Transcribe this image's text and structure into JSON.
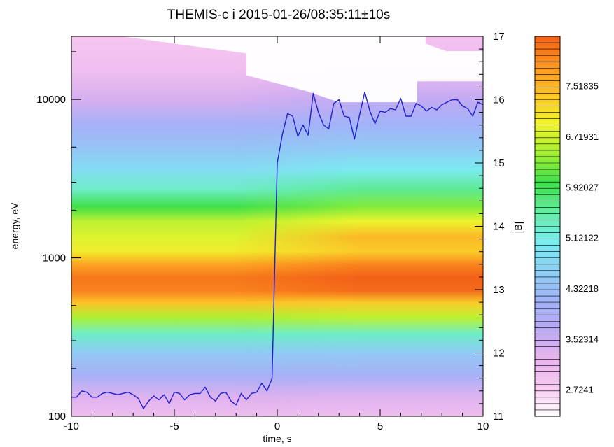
{
  "chart_data": {
    "type": "heatmap",
    "title": "THEMIS-c i 2015-01-26/08:35:11±10s",
    "xlabel": "time, s",
    "ylabel": "energy, eV",
    "y2label": "|B|",
    "xlim": [
      -10,
      10
    ],
    "ylim": [
      100,
      25000
    ],
    "y_scale": "log",
    "y2lim": [
      11,
      17
    ],
    "x_ticks": [
      "-10",
      "-5",
      "0",
      "5",
      "10"
    ],
    "y_ticks": [
      "100",
      "1000",
      "10000"
    ],
    "y2_ticks": [
      "11",
      "12",
      "13",
      "14",
      "15",
      "16",
      "17"
    ],
    "colorbar_labels": [
      "7.51835",
      "6.71931",
      "5.92027",
      "5.12122",
      "4.32218",
      "3.52314",
      "2.7241"
    ],
    "colorbar_range": [
      2.3,
      8.3
    ],
    "colormap": [
      "#ffffff",
      "#f7c8f1",
      "#e8b4ee",
      "#b8a8f4",
      "#a0b4f8",
      "#8cd0f4",
      "#78eef0",
      "#64eca0",
      "#3ee04a",
      "#a4f034",
      "#f0f42c",
      "#fcc428",
      "#fc9420",
      "#f26018"
    ],
    "spectrogram_bands": [
      {
        "energy_ev": 100,
        "left_level": 3.0,
        "right_level": 3.0
      },
      {
        "energy_ev": 130,
        "left_level": 3.3,
        "right_level": 3.3
      },
      {
        "energy_ev": 180,
        "left_level": 4.0,
        "right_level": 4.0
      },
      {
        "energy_ev": 250,
        "left_level": 4.5,
        "right_level": 4.5
      },
      {
        "energy_ev": 330,
        "left_level": 5.3,
        "right_level": 5.3
      },
      {
        "energy_ev": 420,
        "left_level": 6.5,
        "right_level": 6.6
      },
      {
        "energy_ev": 520,
        "left_level": 7.4,
        "right_level": 7.3
      },
      {
        "energy_ev": 620,
        "left_level": 8.0,
        "right_level": 8.2
      },
      {
        "energy_ev": 750,
        "left_level": 8.1,
        "right_level": 8.3
      },
      {
        "energy_ev": 900,
        "left_level": 7.7,
        "right_level": 8.0
      },
      {
        "energy_ev": 1100,
        "left_level": 7.0,
        "right_level": 7.3
      },
      {
        "energy_ev": 1350,
        "left_level": 6.8,
        "right_level": 7.5
      },
      {
        "energy_ev": 1700,
        "left_level": 6.6,
        "right_level": 6.9
      },
      {
        "energy_ev": 2100,
        "left_level": 6.0,
        "right_level": 6.3
      },
      {
        "energy_ev": 2700,
        "left_level": 5.3,
        "right_level": 5.6
      },
      {
        "energy_ev": 3600,
        "left_level": 4.8,
        "right_level": 5.0
      },
      {
        "energy_ev": 5000,
        "left_level": 4.4,
        "right_level": 4.5
      },
      {
        "energy_ev": 7000,
        "left_level": 4.0,
        "right_level": 4.1
      },
      {
        "energy_ev": 10000,
        "left_level": 3.4,
        "right_level": 3.6
      },
      {
        "energy_ev": 15000,
        "left_level": 3.0,
        "right_level": 3.1
      },
      {
        "energy_ev": 25000,
        "left_level": 2.8,
        "right_level": 2.9
      }
    ],
    "series": [
      {
        "axis": "right",
        "color": "#1f1fd2",
        "x": [
          -10.0,
          -9.75,
          -9.5,
          -9.25,
          -9.0,
          -8.75,
          -8.5,
          -8.25,
          -8.0,
          -7.75,
          -7.5,
          -7.25,
          -7.0,
          -6.75,
          -6.5,
          -6.25,
          -6.0,
          -5.75,
          -5.5,
          -5.25,
          -5.0,
          -4.75,
          -4.5,
          -4.25,
          -4.0,
          -3.75,
          -3.5,
          -3.25,
          -3.0,
          -2.75,
          -2.5,
          -2.25,
          -2.0,
          -1.75,
          -1.5,
          -1.25,
          -1.0,
          -0.75,
          -0.5,
          -0.25,
          0.0,
          0.25,
          0.5,
          0.75,
          1.0,
          1.25,
          1.5,
          1.75,
          2.0,
          2.25,
          2.5,
          2.75,
          3.0,
          3.25,
          3.5,
          3.75,
          4.0,
          4.25,
          4.5,
          4.75,
          5.0,
          5.25,
          5.5,
          5.75,
          6.0,
          6.25,
          6.5,
          6.75,
          7.0,
          7.25,
          7.5,
          7.75,
          8.0,
          8.25,
          8.5,
          8.75,
          9.0,
          9.25,
          9.5,
          9.75,
          10.0
        ],
        "values": [
          11.3,
          11.3,
          11.4,
          11.38,
          11.3,
          11.3,
          11.36,
          11.38,
          11.36,
          11.34,
          11.36,
          11.38,
          11.34,
          11.28,
          11.12,
          11.24,
          11.32,
          11.26,
          11.34,
          11.2,
          11.38,
          11.36,
          11.26,
          11.34,
          11.36,
          11.36,
          11.46,
          11.3,
          11.24,
          11.36,
          11.38,
          11.24,
          11.18,
          11.36,
          11.26,
          11.36,
          11.38,
          11.52,
          11.4,
          11.6,
          15.0,
          15.45,
          15.78,
          15.74,
          15.42,
          15.6,
          15.44,
          16.1,
          15.8,
          15.6,
          15.54,
          15.94,
          16.0,
          15.74,
          15.72,
          15.38,
          15.76,
          16.12,
          15.82,
          15.62,
          15.82,
          15.8,
          15.86,
          15.84,
          16.02,
          15.74,
          15.74,
          15.94,
          15.9,
          15.82,
          15.88,
          15.84,
          15.92,
          15.96,
          16.0,
          16.0,
          15.9,
          15.86,
          15.74,
          15.96,
          15.92
        ]
      }
    ]
  }
}
